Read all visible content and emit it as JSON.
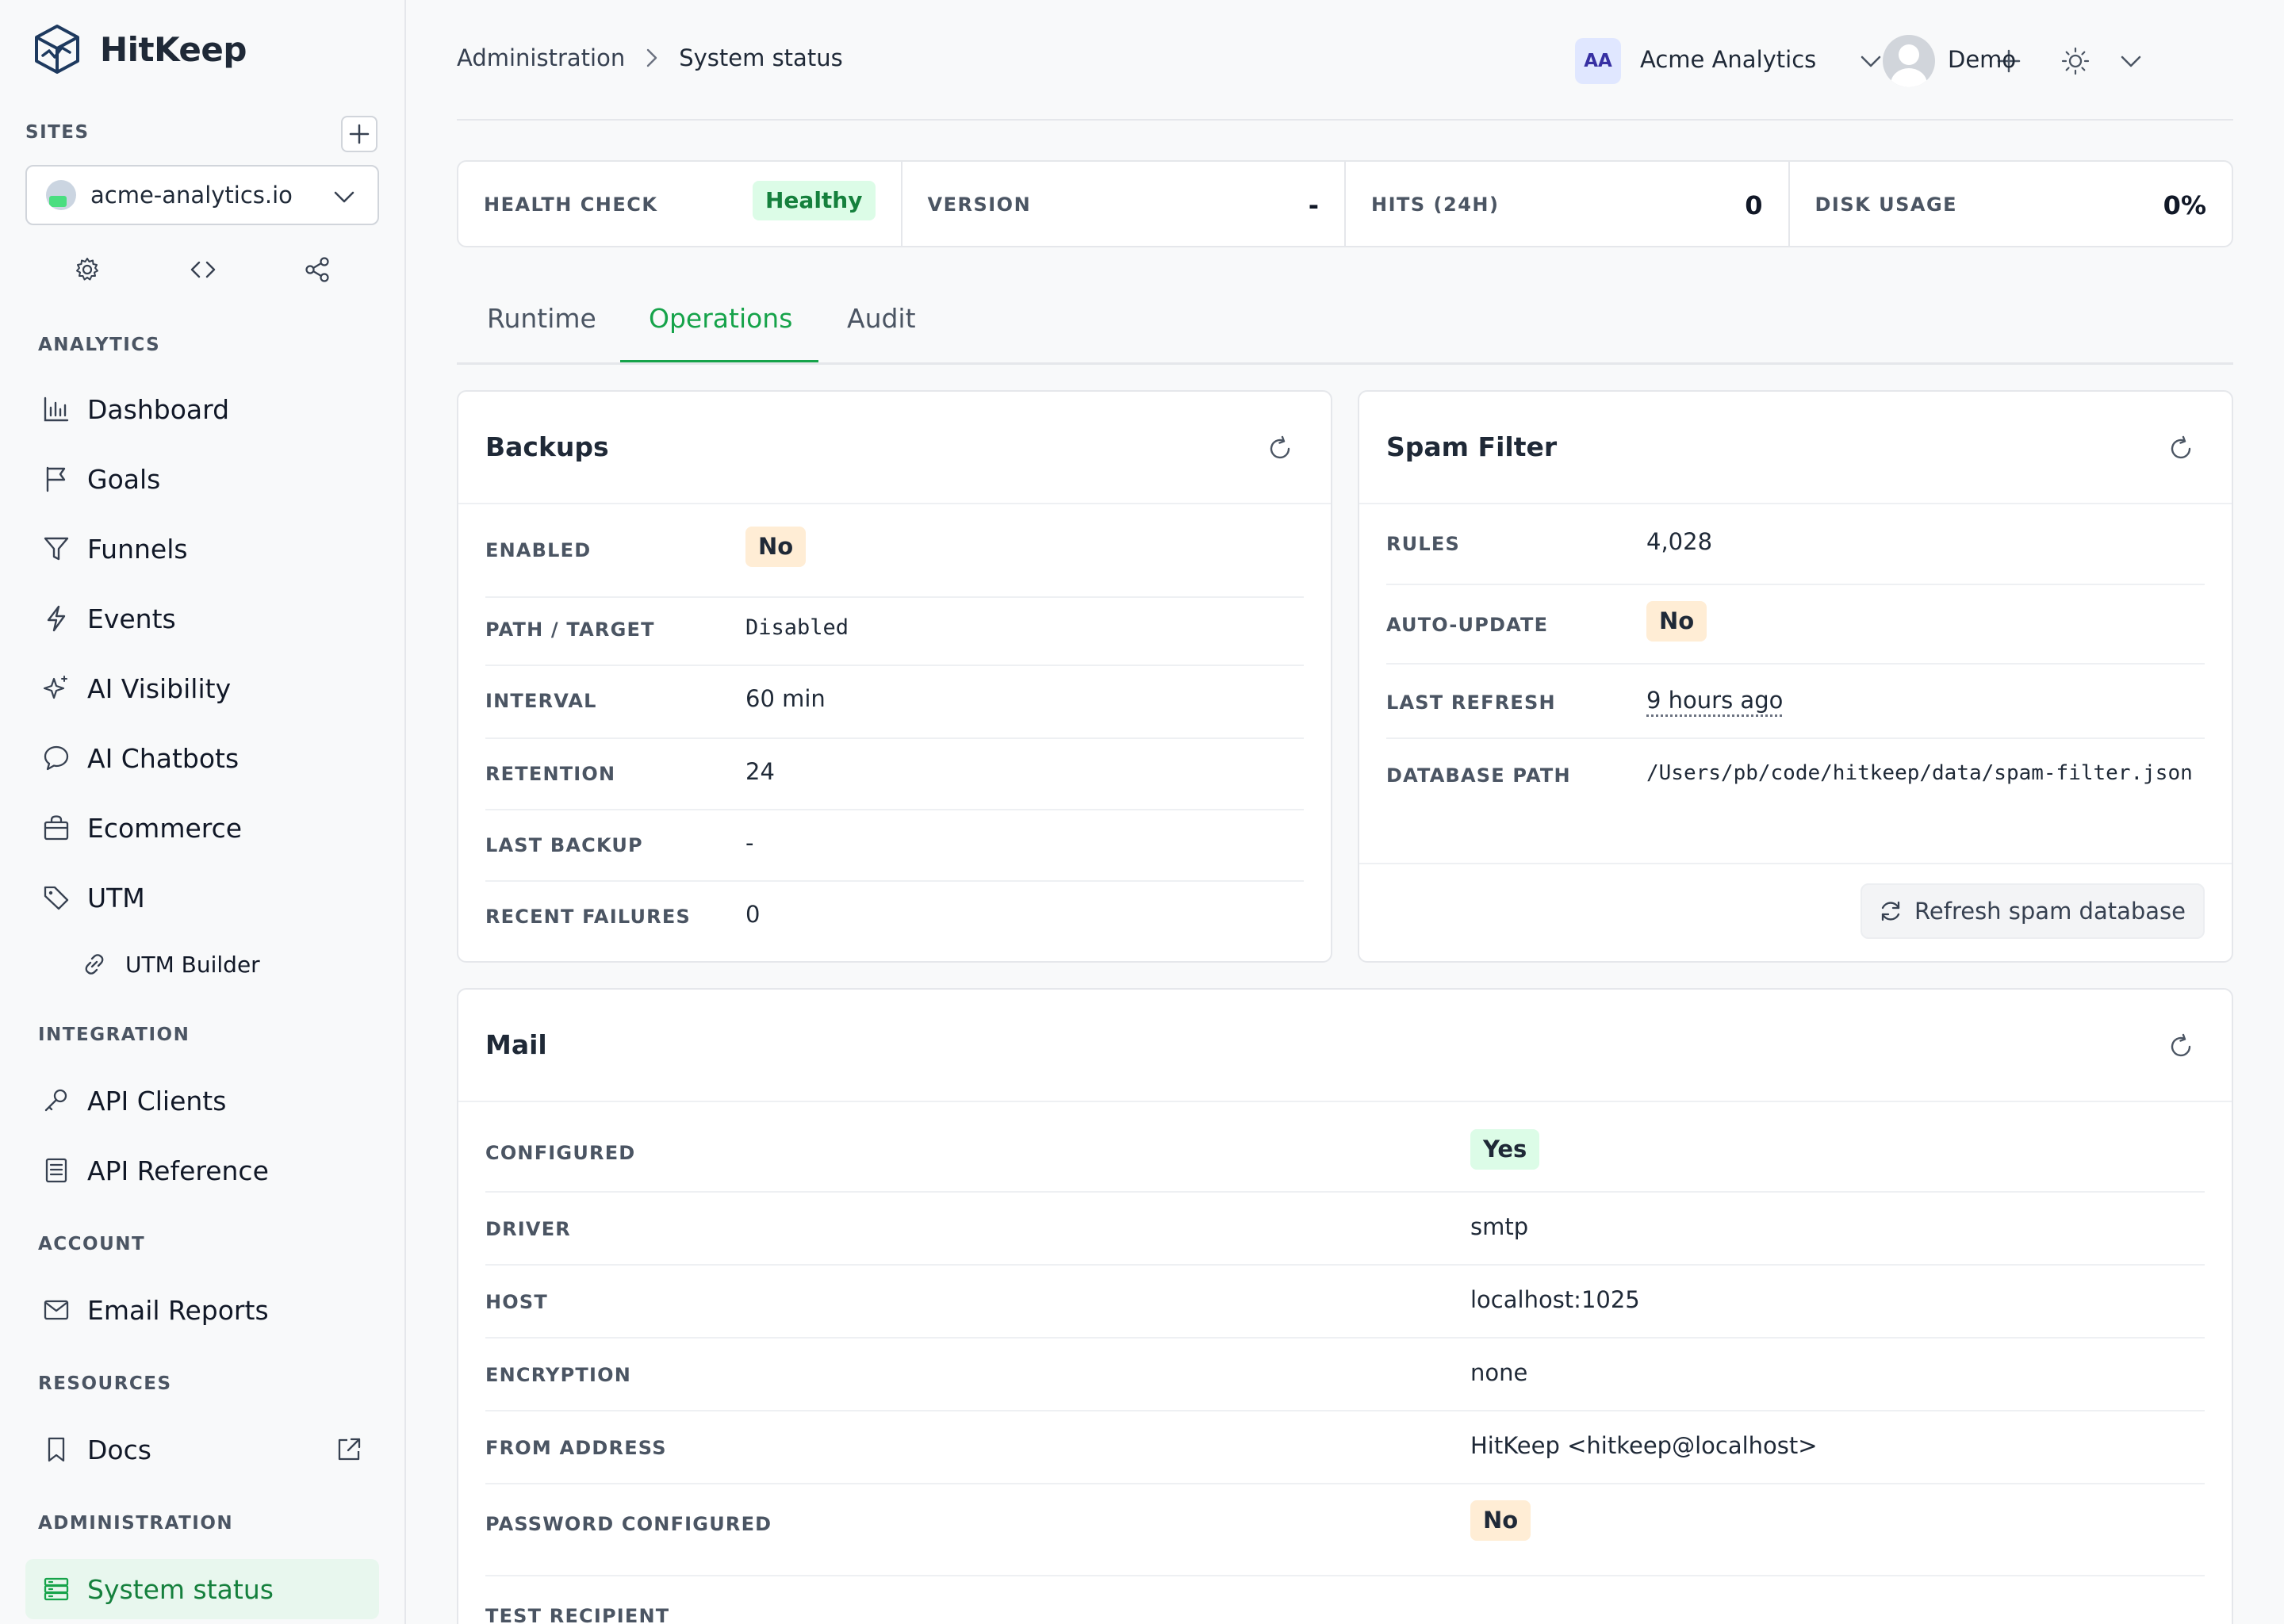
{
  "app": {
    "name": "HitKeep"
  },
  "sidebar": {
    "sites_label": "SITES",
    "site": {
      "name": "acme-analytics.io"
    },
    "sections": {
      "analytics": "ANALYTICS",
      "integration": "INTEGRATION",
      "account": "ACCOUNT",
      "resources": "RESOURCES",
      "administration": "ADMINISTRATION"
    },
    "items": {
      "dashboard": {
        "label": "Dashboard",
        "icon": "bar-chart-icon"
      },
      "goals": {
        "label": "Goals",
        "icon": "flag-icon"
      },
      "funnels": {
        "label": "Funnels",
        "icon": "filter-icon"
      },
      "events": {
        "label": "Events",
        "icon": "bolt-icon"
      },
      "ai_visibility": {
        "label": "AI Visibility",
        "icon": "sparkles-icon"
      },
      "ai_chatbots": {
        "label": "AI Chatbots",
        "icon": "chat-icon"
      },
      "ecommerce": {
        "label": "Ecommerce",
        "icon": "shopping-bag-icon"
      },
      "utm": {
        "label": "UTM",
        "icon": "tag-icon"
      },
      "utm_builder": {
        "label": "UTM Builder",
        "icon": "link-icon"
      },
      "api_clients": {
        "label": "API Clients",
        "icon": "key-icon"
      },
      "api_reference": {
        "label": "API Reference",
        "icon": "document-icon"
      },
      "email_reports": {
        "label": "Email Reports",
        "icon": "envelope-icon"
      },
      "docs": {
        "label": "Docs",
        "icon": "bookmark-icon"
      },
      "system_status": {
        "label": "System status",
        "icon": "server-icon"
      }
    }
  },
  "header": {
    "breadcrumb": [
      "Administration",
      "System status"
    ],
    "org": {
      "initials": "AA",
      "name": "Acme Analytics"
    },
    "user": {
      "name": "Demo"
    }
  },
  "stats": [
    {
      "label": "HEALTH CHECK",
      "value": "Healthy"
    },
    {
      "label": "VERSION",
      "value": "-"
    },
    {
      "label": "HITS (24H)",
      "value": "0"
    },
    {
      "label": "DISK USAGE",
      "value": "0%"
    }
  ],
  "tabs": [
    "Runtime",
    "Operations",
    "Audit"
  ],
  "active_tab": "Operations",
  "backups": {
    "title": "Backups",
    "rows": {
      "enabled": {
        "label": "ENABLED",
        "value": "No"
      },
      "path": {
        "label": "PATH / TARGET",
        "value": "Disabled"
      },
      "interval": {
        "label": "INTERVAL",
        "value": "60 min"
      },
      "retention": {
        "label": "RETENTION",
        "value": "24"
      },
      "last_backup": {
        "label": "LAST BACKUP",
        "value": "-"
      },
      "recent_failures": {
        "label": "RECENT FAILURES",
        "value": "0"
      }
    }
  },
  "spam": {
    "title": "Spam Filter",
    "rows": {
      "rules": {
        "label": "RULES",
        "value": "4,028"
      },
      "auto_update": {
        "label": "AUTO-UPDATE",
        "value": "No"
      },
      "last_refresh": {
        "label": "LAST REFRESH",
        "value": "9 hours ago"
      },
      "db_path": {
        "label": "DATABASE PATH",
        "value": "/Users/pb/code/hitkeep/data/spam-filter.json"
      }
    },
    "refresh_button": "Refresh spam database"
  },
  "mail": {
    "title": "Mail",
    "rows": {
      "configured": {
        "label": "CONFIGURED",
        "value": "Yes"
      },
      "driver": {
        "label": "DRIVER",
        "value": "smtp"
      },
      "host": {
        "label": "HOST",
        "value": "localhost:1025"
      },
      "encryption": {
        "label": "ENCRYPTION",
        "value": "none"
      },
      "from": {
        "label": "FROM ADDRESS",
        "value": "HitKeep <hitkeep@localhost>"
      },
      "password": {
        "label": "PASSWORD CONFIGURED",
        "value": "No"
      },
      "test_recipient": {
        "label": "TEST RECIPIENT",
        "value": ""
      }
    }
  },
  "colors": {
    "accent": "#16a34a",
    "badge_green_bg": "#dcfce7",
    "badge_orange_bg": "#ffedd5",
    "sidebar_active_bg": "#e8f7ee"
  }
}
